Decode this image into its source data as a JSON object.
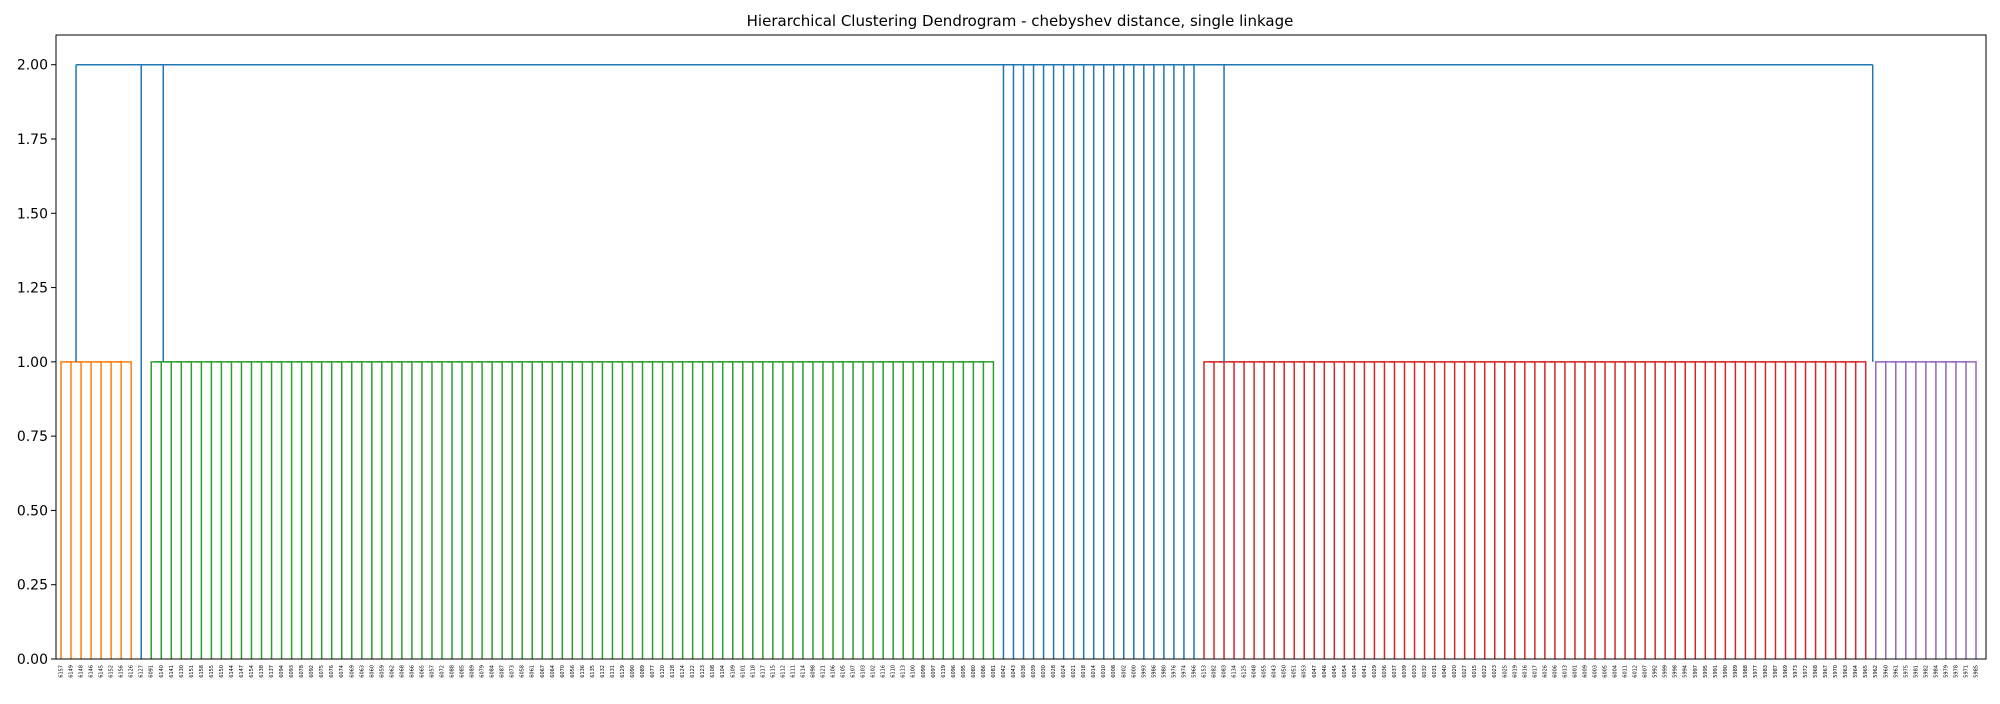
{
  "chart_data": {
    "type": "dendrogram",
    "title": "Hierarchical Clustering Dendrogram - chebyshev distance, single linkage",
    "xlabel": "",
    "ylabel": "",
    "ylim": [
      0,
      2.1
    ],
    "yticks": [
      "0.00",
      "0.25",
      "0.50",
      "0.75",
      "1.00",
      "1.25",
      "1.50",
      "1.75",
      "2.00"
    ],
    "yticks_values": [
      0,
      0.25,
      0.5,
      0.75,
      1.0,
      1.25,
      1.5,
      1.75,
      2.0
    ],
    "grid": false,
    "colors": {
      "orange": "#ff7f0e",
      "green": "#2ca02c",
      "blue": "#1f77b4",
      "red": "#d62728",
      "purple": "#9467bd"
    },
    "leaves": [
      "6157",
      "6149",
      "6148",
      "6146",
      "6145",
      "6152",
      "6156",
      "6126",
      "6127",
      "6091",
      "6140",
      "6141",
      "6130",
      "6151",
      "6158",
      "6155",
      "6150",
      "6144",
      "6147",
      "6154",
      "6138",
      "6137",
      "6094",
      "6093",
      "6078",
      "6092",
      "6075",
      "6076",
      "6074",
      "6069",
      "6063",
      "6060",
      "6059",
      "6062",
      "6068",
      "6066",
      "6065",
      "6057",
      "6072",
      "6088",
      "6085",
      "6089",
      "6079",
      "6084",
      "6087",
      "6073",
      "6058",
      "6061",
      "6067",
      "6064",
      "6070",
      "6056",
      "6136",
      "6135",
      "6132",
      "6131",
      "6129",
      "6090",
      "6089",
      "6077",
      "6120",
      "6128",
      "6124",
      "6122",
      "6123",
      "6108",
      "6104",
      "6109",
      "6101",
      "6118",
      "6117",
      "6115",
      "6112",
      "6111",
      "6114",
      "6098",
      "6121",
      "6106",
      "6105",
      "6107",
      "6103",
      "6102",
      "6116",
      "6110",
      "6113",
      "6100",
      "6099",
      "6097",
      "6119",
      "6096",
      "6095",
      "6080",
      "6086",
      "6081",
      "6042",
      "6043",
      "6038",
      "6039",
      "6030",
      "6028",
      "6024",
      "6021",
      "6018",
      "6014",
      "6010",
      "6008",
      "6002",
      "6000",
      "5993",
      "5986",
      "5980",
      "5976",
      "5974",
      "5966",
      "6153",
      "6082",
      "6083",
      "6134",
      "6125",
      "6048",
      "6055",
      "6043",
      "6050",
      "6051",
      "6053",
      "6047",
      "6046",
      "6045",
      "6054",
      "6034",
      "6041",
      "6029",
      "6036",
      "6037",
      "6039",
      "6033",
      "6032",
      "6031",
      "6040",
      "6020",
      "6027",
      "6015",
      "6022",
      "6023",
      "6025",
      "6019",
      "6016",
      "6017",
      "6026",
      "6006",
      "6013",
      "6001",
      "6009",
      "6003",
      "6005",
      "6004",
      "6011",
      "6012",
      "6007",
      "5992",
      "5999",
      "5998",
      "5994",
      "5997",
      "5995",
      "5991",
      "5990",
      "5989",
      "5988",
      "5977",
      "5983",
      "5987",
      "5969",
      "5973",
      "5972",
      "5968",
      "5967",
      "5970",
      "5963",
      "5964",
      "5965",
      "5962",
      "5960",
      "5961",
      "5975",
      "5981",
      "5982",
      "5984",
      "5979",
      "5978",
      "5971",
      "5985"
    ],
    "links": [
      {
        "x": [
          0,
          0,
          1,
          1
        ],
        "y": [
          0,
          1.0,
          1.0,
          0
        ],
        "c": "orange"
      },
      {
        "x": [
          1,
          1,
          2,
          2
        ],
        "y": [
          0,
          1.0,
          1.0,
          0
        ],
        "c": "orange"
      },
      {
        "x": [
          2,
          2,
          3,
          3
        ],
        "y": [
          0,
          1.0,
          1.0,
          0
        ],
        "c": "orange"
      },
      {
        "x": [
          3,
          3,
          4,
          4
        ],
        "y": [
          0,
          1.0,
          1.0,
          0
        ],
        "c": "orange"
      },
      {
        "x": [
          4,
          4,
          5,
          5
        ],
        "y": [
          0,
          1.0,
          1.0,
          0
        ],
        "c": "orange"
      },
      {
        "x": [
          5,
          5,
          6,
          6
        ],
        "y": [
          0,
          1.0,
          1.0,
          0
        ],
        "c": "orange"
      },
      {
        "x": [
          6,
          6,
          7,
          7
        ],
        "y": [
          0,
          1.0,
          1.0,
          0
        ],
        "c": "orange"
      },
      {
        "x": [
          1.5,
          1.5,
          8,
          8
        ],
        "y": [
          1.0,
          2.0,
          2.0,
          0
        ],
        "c": "blue"
      },
      {
        "x": [
          8,
          8,
          10,
          10
        ],
        "y": [
          2.0,
          2.0,
          2.0,
          1.0
        ],
        "c": "blue"
      },
      {
        "x": [
          9,
          9,
          10,
          10
        ],
        "y": [
          0,
          1.0,
          1.0,
          0
        ],
        "c": "green"
      },
      {
        "x": [
          10,
          10,
          11,
          11
        ],
        "y": [
          0,
          1.0,
          1.0,
          0
        ],
        "c": "green"
      }
    ]
  }
}
